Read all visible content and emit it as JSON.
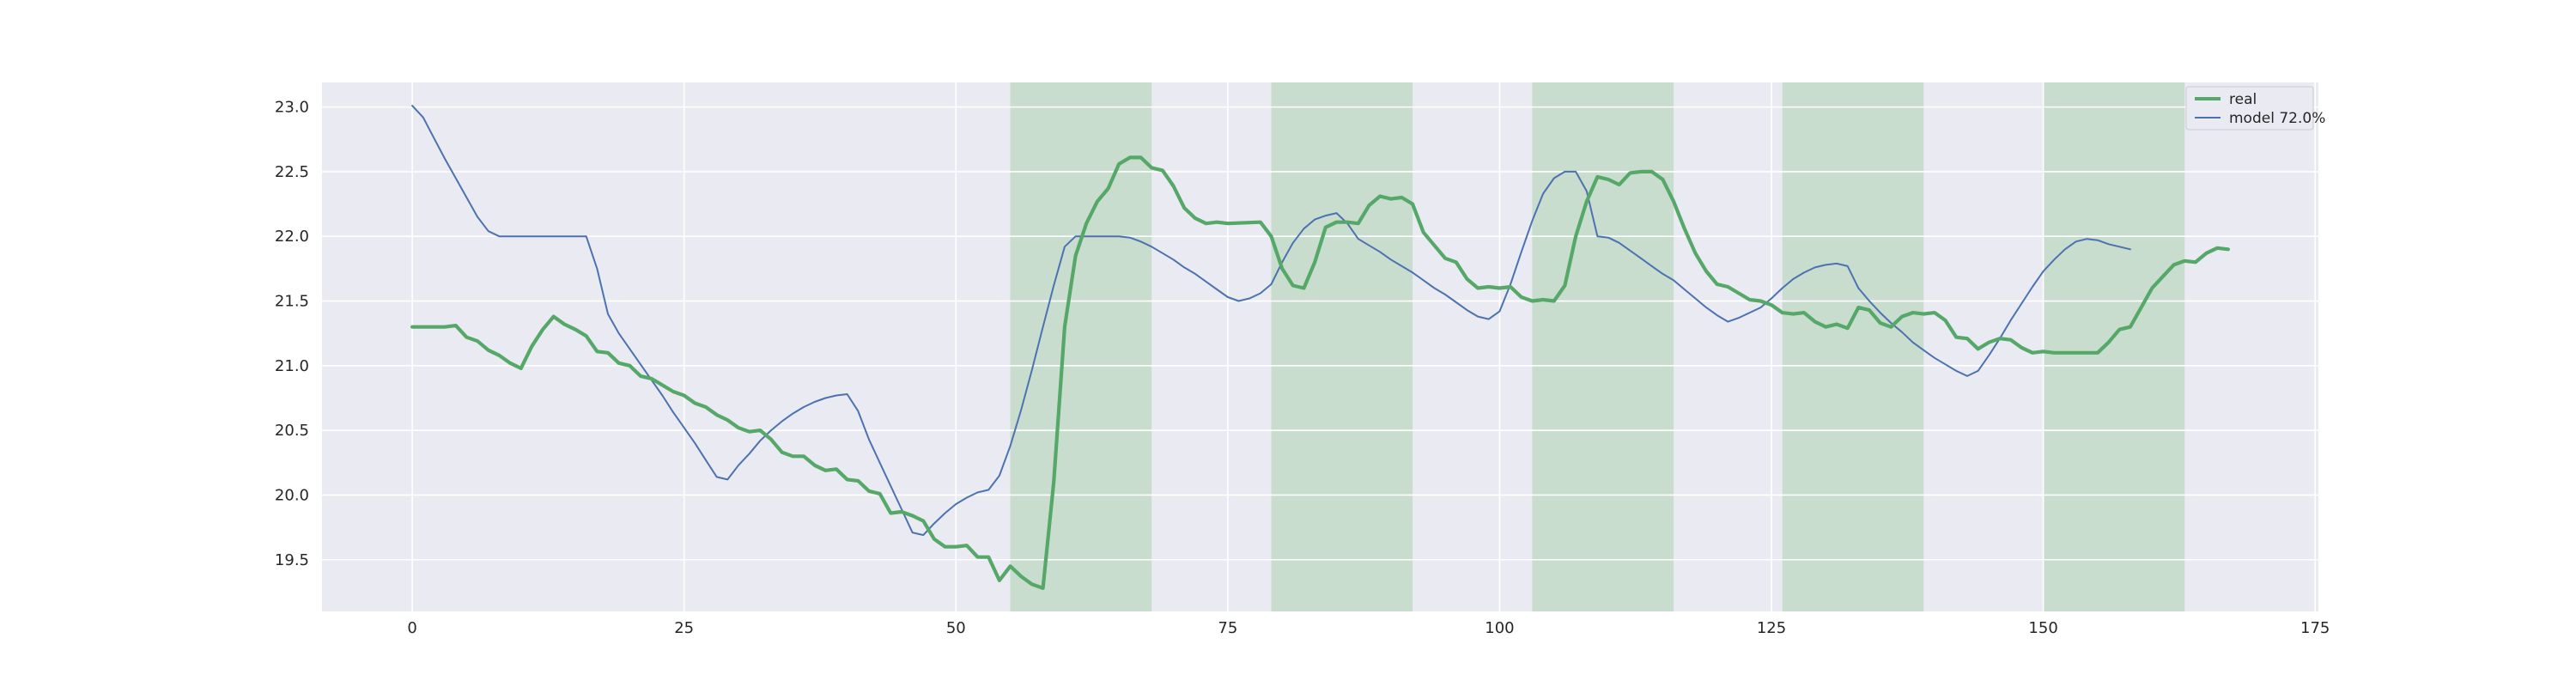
{
  "chart_data": {
    "type": "line",
    "title": "",
    "xlabel": "",
    "ylabel": "",
    "xlim": [
      -8.3,
      175.3
    ],
    "ylim": [
      19.1,
      23.19
    ],
    "xticks": [
      0,
      25,
      50,
      75,
      100,
      125,
      150,
      175
    ],
    "xtick_labels": [
      "0",
      "25",
      "50",
      "75",
      "100",
      "125",
      "150",
      "175"
    ],
    "yticks": [
      19.5,
      20.0,
      20.5,
      21.0,
      21.5,
      22.0,
      22.5,
      23.0
    ],
    "ytick_labels": [
      "19.5",
      "20.0",
      "20.5",
      "21.0",
      "21.5",
      "22.0",
      "22.5",
      "23.0"
    ],
    "grid": true,
    "legend_location": "top-right",
    "shaded_regions": [
      [
        55,
        68
      ],
      [
        79,
        92
      ],
      [
        103,
        116
      ],
      [
        126,
        139
      ],
      [
        150,
        163
      ]
    ],
    "series": [
      {
        "name": "real",
        "color": "#55a868",
        "points": [
          [
            0,
            21.3
          ],
          [
            3,
            21.3
          ],
          [
            4,
            21.31
          ],
          [
            5,
            21.22
          ],
          [
            6,
            21.19
          ],
          [
            7,
            21.12
          ],
          [
            8,
            21.08
          ],
          [
            9,
            21.02
          ],
          [
            10,
            20.98
          ],
          [
            11,
            21.15
          ],
          [
            12,
            21.28
          ],
          [
            13,
            21.38
          ],
          [
            14,
            21.32
          ],
          [
            15,
            21.28
          ],
          [
            16,
            21.23
          ],
          [
            17,
            21.11
          ],
          [
            18,
            21.1
          ],
          [
            19,
            21.02
          ],
          [
            20,
            21.0
          ],
          [
            21,
            20.92
          ],
          [
            22,
            20.9
          ],
          [
            23,
            20.85
          ],
          [
            24,
            20.8
          ],
          [
            25,
            20.77
          ],
          [
            26,
            20.71
          ],
          [
            27,
            20.68
          ],
          [
            28,
            20.62
          ],
          [
            29,
            20.58
          ],
          [
            30,
            20.52
          ],
          [
            31,
            20.49
          ],
          [
            32,
            20.5
          ],
          [
            33,
            20.43
          ],
          [
            34,
            20.33
          ],
          [
            35,
            20.3
          ],
          [
            36,
            20.3
          ],
          [
            37,
            20.23
          ],
          [
            38,
            20.19
          ],
          [
            39,
            20.2
          ],
          [
            40,
            20.12
          ],
          [
            41,
            20.11
          ],
          [
            42,
            20.03
          ],
          [
            43,
            20.01
          ],
          [
            44,
            19.86
          ],
          [
            45,
            19.87
          ],
          [
            46,
            19.84
          ],
          [
            47,
            19.8
          ],
          [
            48,
            19.66
          ],
          [
            49,
            19.6
          ],
          [
            50,
            19.6
          ],
          [
            51,
            19.61
          ],
          [
            52,
            19.52
          ],
          [
            53,
            19.52
          ],
          [
            54,
            19.34
          ],
          [
            55,
            19.45
          ],
          [
            56,
            19.37
          ],
          [
            57,
            19.31
          ],
          [
            58,
            19.28
          ],
          [
            59,
            20.1
          ],
          [
            60,
            21.3
          ],
          [
            61,
            21.85
          ],
          [
            62,
            22.1
          ],
          [
            63,
            22.27
          ],
          [
            64,
            22.37
          ],
          [
            65,
            22.56
          ],
          [
            66,
            22.61
          ],
          [
            67,
            22.61
          ],
          [
            68,
            22.53
          ],
          [
            69,
            22.51
          ],
          [
            70,
            22.39
          ],
          [
            71,
            22.22
          ],
          [
            72,
            22.14
          ],
          [
            73,
            22.1
          ],
          [
            74,
            22.11
          ],
          [
            75,
            22.1
          ],
          [
            78,
            22.11
          ],
          [
            79,
            22.0
          ],
          [
            80,
            21.75
          ],
          [
            81,
            21.62
          ],
          [
            82,
            21.6
          ],
          [
            83,
            21.8
          ],
          [
            84,
            22.07
          ],
          [
            85,
            22.11
          ],
          [
            86,
            22.11
          ],
          [
            87,
            22.1
          ],
          [
            88,
            22.24
          ],
          [
            89,
            22.31
          ],
          [
            90,
            22.29
          ],
          [
            91,
            22.3
          ],
          [
            92,
            22.25
          ],
          [
            93,
            22.03
          ],
          [
            94,
            21.93
          ],
          [
            95,
            21.83
          ],
          [
            96,
            21.8
          ],
          [
            97,
            21.67
          ],
          [
            98,
            21.6
          ],
          [
            99,
            21.61
          ],
          [
            100,
            21.6
          ],
          [
            101,
            21.61
          ],
          [
            102,
            21.53
          ],
          [
            103,
            21.5
          ],
          [
            104,
            21.51
          ],
          [
            105,
            21.5
          ],
          [
            106,
            21.62
          ],
          [
            107,
            22.0
          ],
          [
            108,
            22.27
          ],
          [
            109,
            22.46
          ],
          [
            110,
            22.44
          ],
          [
            111,
            22.4
          ],
          [
            112,
            22.49
          ],
          [
            113,
            22.5
          ],
          [
            114,
            22.5
          ],
          [
            115,
            22.44
          ],
          [
            116,
            22.27
          ],
          [
            117,
            22.06
          ],
          [
            118,
            21.87
          ],
          [
            119,
            21.73
          ],
          [
            120,
            21.63
          ],
          [
            121,
            21.61
          ],
          [
            122,
            21.56
          ],
          [
            123,
            21.51
          ],
          [
            124,
            21.5
          ],
          [
            125,
            21.47
          ],
          [
            126,
            21.41
          ],
          [
            127,
            21.4
          ],
          [
            128,
            21.41
          ],
          [
            129,
            21.34
          ],
          [
            130,
            21.3
          ],
          [
            131,
            21.32
          ],
          [
            132,
            21.29
          ],
          [
            133,
            21.45
          ],
          [
            134,
            21.43
          ],
          [
            135,
            21.33
          ],
          [
            136,
            21.3
          ],
          [
            137,
            21.38
          ],
          [
            138,
            21.41
          ],
          [
            139,
            21.4
          ],
          [
            140,
            21.41
          ],
          [
            141,
            21.35
          ],
          [
            142,
            21.22
          ],
          [
            143,
            21.21
          ],
          [
            144,
            21.13
          ],
          [
            145,
            21.18
          ],
          [
            146,
            21.21
          ],
          [
            147,
            21.2
          ],
          [
            148,
            21.14
          ],
          [
            149,
            21.1
          ],
          [
            150,
            21.11
          ],
          [
            151,
            21.1
          ],
          [
            155,
            21.1
          ],
          [
            156,
            21.18
          ],
          [
            157,
            21.28
          ],
          [
            158,
            21.3
          ],
          [
            159,
            21.45
          ],
          [
            160,
            21.6
          ],
          [
            161,
            21.69
          ],
          [
            162,
            21.78
          ],
          [
            163,
            21.81
          ],
          [
            164,
            21.8
          ],
          [
            165,
            21.87
          ],
          [
            166,
            21.91
          ],
          [
            167,
            21.9
          ]
        ]
      },
      {
        "name": "model 72.0%",
        "color": "#4c72b0",
        "points": [
          [
            0,
            23.01
          ],
          [
            1,
            22.92
          ],
          [
            2,
            22.76
          ],
          [
            3,
            22.6
          ],
          [
            4,
            22.45
          ],
          [
            5,
            22.3
          ],
          [
            6,
            22.15
          ],
          [
            7,
            22.04
          ],
          [
            8,
            22.0
          ],
          [
            16,
            22.0
          ],
          [
            17,
            21.75
          ],
          [
            18,
            21.4
          ],
          [
            19,
            21.25
          ],
          [
            20,
            21.13
          ],
          [
            21,
            21.01
          ],
          [
            22,
            20.89
          ],
          [
            23,
            20.77
          ],
          [
            24,
            20.64
          ],
          [
            25,
            20.52
          ],
          [
            26,
            20.4
          ],
          [
            27,
            20.27
          ],
          [
            28,
            20.14
          ],
          [
            29,
            20.12
          ],
          [
            30,
            20.23
          ],
          [
            31,
            20.32
          ],
          [
            32,
            20.42
          ],
          [
            33,
            20.5
          ],
          [
            34,
            20.57
          ],
          [
            35,
            20.63
          ],
          [
            36,
            20.68
          ],
          [
            37,
            20.72
          ],
          [
            38,
            20.75
          ],
          [
            39,
            20.77
          ],
          [
            40,
            20.78
          ],
          [
            41,
            20.65
          ],
          [
            42,
            20.43
          ],
          [
            43,
            20.25
          ],
          [
            44,
            20.07
          ],
          [
            45,
            19.89
          ],
          [
            46,
            19.71
          ],
          [
            47,
            19.69
          ],
          [
            48,
            19.78
          ],
          [
            49,
            19.86
          ],
          [
            50,
            19.93
          ],
          [
            51,
            19.98
          ],
          [
            52,
            20.02
          ],
          [
            53,
            20.04
          ],
          [
            54,
            20.15
          ],
          [
            55,
            20.38
          ],
          [
            56,
            20.66
          ],
          [
            57,
            20.97
          ],
          [
            58,
            21.3
          ],
          [
            59,
            21.62
          ],
          [
            60,
            21.92
          ],
          [
            61,
            22.0
          ],
          [
            65,
            22.0
          ],
          [
            66,
            21.99
          ],
          [
            67,
            21.96
          ],
          [
            68,
            21.92
          ],
          [
            69,
            21.87
          ],
          [
            70,
            21.82
          ],
          [
            71,
            21.76
          ],
          [
            72,
            21.71
          ],
          [
            73,
            21.65
          ],
          [
            74,
            21.59
          ],
          [
            75,
            21.53
          ],
          [
            76,
            21.5
          ],
          [
            77,
            21.52
          ],
          [
            78,
            21.56
          ],
          [
            79,
            21.63
          ],
          [
            80,
            21.8
          ],
          [
            81,
            21.95
          ],
          [
            82,
            22.06
          ],
          [
            83,
            22.13
          ],
          [
            84,
            22.16
          ],
          [
            85,
            22.18
          ],
          [
            86,
            22.1
          ],
          [
            87,
            21.98
          ],
          [
            88,
            21.93
          ],
          [
            89,
            21.88
          ],
          [
            90,
            21.82
          ],
          [
            91,
            21.77
          ],
          [
            92,
            21.72
          ],
          [
            93,
            21.66
          ],
          [
            94,
            21.6
          ],
          [
            95,
            21.55
          ],
          [
            96,
            21.49
          ],
          [
            97,
            21.43
          ],
          [
            98,
            21.38
          ],
          [
            99,
            21.36
          ],
          [
            100,
            21.42
          ],
          [
            101,
            21.63
          ],
          [
            102,
            21.88
          ],
          [
            103,
            22.12
          ],
          [
            104,
            22.33
          ],
          [
            105,
            22.45
          ],
          [
            106,
            22.5
          ],
          [
            107,
            22.5
          ],
          [
            108,
            22.35
          ],
          [
            109,
            22.0
          ],
          [
            110,
            21.99
          ],
          [
            111,
            21.95
          ],
          [
            112,
            21.89
          ],
          [
            113,
            21.83
          ],
          [
            114,
            21.77
          ],
          [
            115,
            21.71
          ],
          [
            116,
            21.66
          ],
          [
            117,
            21.59
          ],
          [
            118,
            21.52
          ],
          [
            119,
            21.45
          ],
          [
            120,
            21.39
          ],
          [
            121,
            21.34
          ],
          [
            122,
            21.37
          ],
          [
            123,
            21.41
          ],
          [
            124,
            21.45
          ],
          [
            125,
            21.52
          ],
          [
            126,
            21.6
          ],
          [
            127,
            21.67
          ],
          [
            128,
            21.72
          ],
          [
            129,
            21.76
          ],
          [
            130,
            21.78
          ],
          [
            131,
            21.79
          ],
          [
            132,
            21.77
          ],
          [
            133,
            21.6
          ],
          [
            134,
            21.5
          ],
          [
            135,
            21.41
          ],
          [
            136,
            21.33
          ],
          [
            137,
            21.26
          ],
          [
            138,
            21.18
          ],
          [
            139,
            21.12
          ],
          [
            140,
            21.06
          ],
          [
            141,
            21.01
          ],
          [
            142,
            20.96
          ],
          [
            143,
            20.92
          ],
          [
            144,
            20.96
          ],
          [
            145,
            21.08
          ],
          [
            146,
            21.21
          ],
          [
            147,
            21.35
          ],
          [
            148,
            21.48
          ],
          [
            149,
            21.61
          ],
          [
            150,
            21.73
          ],
          [
            151,
            21.82
          ],
          [
            152,
            21.9
          ],
          [
            153,
            21.96
          ],
          [
            154,
            21.98
          ],
          [
            155,
            21.97
          ],
          [
            156,
            21.94
          ],
          [
            157,
            21.92
          ],
          [
            158,
            21.9
          ]
        ]
      }
    ]
  }
}
